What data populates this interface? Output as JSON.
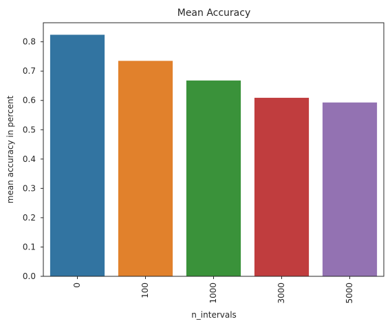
{
  "chart_data": {
    "type": "bar",
    "title": "Mean Accuracy",
    "xlabel": "n_intervals",
    "ylabel": "mean accuracy in percent",
    "categories": [
      "0",
      "100",
      "1000",
      "3000",
      "5000"
    ],
    "values": [
      0.824,
      0.735,
      0.668,
      0.609,
      0.593
    ],
    "colors": [
      "#3274a1",
      "#e1812c",
      "#3a923a",
      "#c03d3e",
      "#9372b2"
    ],
    "ylim": [
      0,
      0.865
    ],
    "yticks": [
      0.0,
      0.1,
      0.2,
      0.3,
      0.4,
      0.5,
      0.6,
      0.7,
      0.8
    ],
    "ytick_labels": [
      "0.0",
      "0.1",
      "0.2",
      "0.3",
      "0.4",
      "0.5",
      "0.6",
      "0.7",
      "0.8"
    ],
    "xtick_rotation": "vertical",
    "grid": false,
    "legend": "none"
  }
}
